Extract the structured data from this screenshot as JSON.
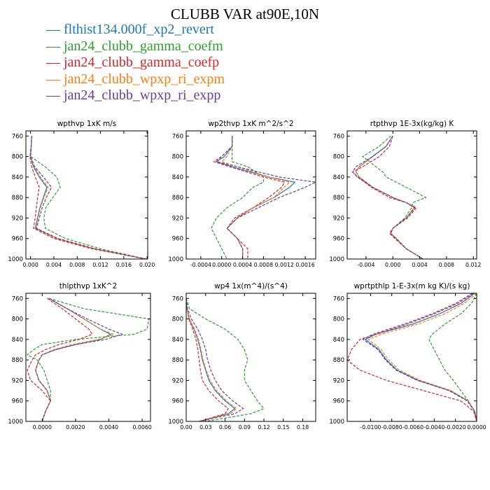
{
  "title": "CLUBB VAR at90E,10N",
  "colors": {
    "flthist134.000f_xp2_revert": "#1f77b4",
    "jan24_clubb_gamma_coefm": "#2ca02c",
    "jan24_clubb_gamma_coefp": "#d62728",
    "jan24_clubb_wpxp_ri_expm": "#ff7f0e",
    "jan24_clubb_wpxp_ri_expp": "#6a3d9a"
  },
  "legend": [
    {
      "label": "— flthist134.000f_xp2_revert",
      "color": "#1f77b4"
    },
    {
      "label": "— jan24_clubb_gamma_coefm",
      "color": "#2ca02c"
    },
    {
      "label": "— jan24_clubb_gamma_coefp",
      "color": "#d62728"
    },
    {
      "label": "— jan24_clubb_wpxp_ri_expm",
      "color": "#ff7f0e"
    },
    {
      "label": "— jan24_clubb_wpxp_ri_expp",
      "color": "#6a3d9a"
    }
  ],
  "chart_data": [
    {
      "type": "line",
      "title": "wpthvp  1xK m/s",
      "xlim": [
        -0.0008,
        0.0201
      ],
      "ylim": [
        1000,
        750
      ],
      "xticks": [
        0.0,
        0.004,
        0.008,
        0.012,
        0.016,
        0.02
      ],
      "xtick_labels": [
        "0.000",
        "0.004",
        "0.008",
        "0.012",
        "0.016",
        "0.020"
      ],
      "yticks": [
        760,
        800,
        840,
        880,
        920,
        960,
        1000
      ],
      "y": [
        760,
        780,
        800,
        820,
        840,
        860,
        880,
        900,
        920,
        940,
        960,
        980,
        1000
      ],
      "series": [
        {
          "name": "flthist134.000f_xp2_revert",
          "values": [
            0.0002,
            0.0001,
            0.0,
            0.0005,
            0.0015,
            0.0028,
            0.0022,
            0.0016,
            0.0012,
            0.0008,
            0.0045,
            0.011,
            0.0198
          ]
        },
        {
          "name": "jan24_clubb_gamma_coefm",
          "values": [
            0.0002,
            0.0001,
            0.0,
            0.0025,
            0.0045,
            0.0051,
            0.0038,
            0.0026,
            0.0023,
            0.0025,
            0.006,
            0.012,
            0.0198
          ]
        },
        {
          "name": "jan24_clubb_gamma_coefp",
          "values": [
            0.0002,
            0.0001,
            -0.0001,
            0.0002,
            0.0008,
            0.0015,
            0.0012,
            0.001,
            0.0008,
            0.0005,
            0.004,
            0.0105,
            0.0198
          ]
        },
        {
          "name": "jan24_clubb_wpxp_ri_expm",
          "values": [
            0.0002,
            0.0001,
            0.0,
            0.0006,
            0.0017,
            0.003,
            0.0023,
            0.0017,
            0.0013,
            0.0009,
            0.0045,
            0.011,
            0.0198
          ]
        },
        {
          "name": "jan24_clubb_wpxp_ri_expp",
          "values": [
            0.0002,
            0.0001,
            0.0,
            0.0007,
            0.0022,
            0.0036,
            0.0027,
            0.002,
            0.0015,
            0.001,
            0.0047,
            0.011,
            0.0198
          ]
        }
      ]
    },
    {
      "type": "line",
      "title": "wp2thvp  1xK m^2/s^2",
      "xlim": [
        -0.00068,
        0.0018
      ],
      "ylim": [
        1000,
        750
      ],
      "xticks": [
        -0.0004,
        0.0,
        0.0004,
        0.0008,
        0.0012,
        0.0016
      ],
      "xtick_labels": [
        "-0.0004",
        "0.0000",
        "0.0004",
        "0.0008",
        "0.0012",
        "0.0016"
      ],
      "yticks": [
        760,
        800,
        840,
        880,
        920,
        960,
        1000
      ],
      "y": [
        760,
        780,
        800,
        810,
        820,
        840,
        850,
        860,
        880,
        900,
        920,
        940,
        960,
        980,
        1000
      ],
      "series": [
        {
          "name": "flthist134.000f_xp2_revert",
          "values": [
            0.0002,
            0.0002,
            5e-05,
            -0.0001,
            0.0002,
            0.0009,
            0.0014,
            0.0013,
            0.001,
            0.0006,
            0.0003,
            0.0001,
            0.0003,
            0.0004,
            0.0004
          ]
        },
        {
          "name": "jan24_clubb_gamma_coefm",
          "values": [
            0.0002,
            0.0002,
            0.0002,
            0.0002,
            0.0005,
            0.0008,
            0.0008,
            0.0006,
            0.0004,
            0.0001,
            -0.0001,
            -0.0002,
            -0.0001,
            0.0,
            0.0001
          ]
        },
        {
          "name": "jan24_clubb_gamma_coefp",
          "values": [
            0.0002,
            0.0002,
            0.0,
            -0.00015,
            0.00015,
            0.0008,
            0.0012,
            0.00115,
            0.0009,
            0.0006,
            0.00025,
            0.0001,
            0.0003,
            0.0005,
            0.0005
          ]
        },
        {
          "name": "jan24_clubb_wpxp_ri_expm",
          "values": [
            0.0002,
            0.0002,
            0.0001,
            0.0,
            0.0003,
            0.0009,
            0.0013,
            0.0012,
            0.001,
            0.0006,
            0.0003,
            0.0001,
            0.0003,
            0.0004,
            0.0004
          ]
        },
        {
          "name": "jan24_clubb_wpxp_ri_expp",
          "values": [
            0.0002,
            0.0002,
            0.0,
            -0.0001,
            0.0003,
            0.0011,
            0.0018,
            0.0016,
            0.0011,
            0.0007,
            0.0003,
            0.0001,
            0.0003,
            0.0004,
            0.0004
          ]
        }
      ]
    },
    {
      "type": "line",
      "title": "rtpthvp  1E-3x(kg/kg) K",
      "xlim": [
        -0.0068,
        0.0125
      ],
      "ylim": [
        1000,
        750
      ],
      "xticks": [
        -0.004,
        0.0,
        0.004,
        0.008,
        0.012
      ],
      "xtick_labels": [
        "-0.004",
        "0.000",
        "0.004",
        "0.008",
        "0.012"
      ],
      "yticks": [
        760,
        800,
        840,
        880,
        920,
        960,
        1000
      ],
      "y": [
        760,
        780,
        800,
        820,
        830,
        840,
        860,
        880,
        890,
        900,
        920,
        940,
        950,
        960,
        980,
        1000
      ],
      "series": [
        {
          "name": "flthist134.000f_xp2_revert",
          "values": [
            0.0,
            -0.001,
            -0.003,
            -0.005,
            -0.0055,
            -0.005,
            -0.003,
            0.0,
            0.002,
            0.0032,
            0.002,
            0.0,
            -0.0003,
            0.0005,
            0.002,
            0.0045
          ]
        },
        {
          "name": "jan24_clubb_gamma_coefm",
          "values": [
            -0.0003,
            -0.002,
            -0.0045,
            -0.0025,
            -0.0015,
            -0.001,
            0.002,
            0.0049,
            0.003,
            0.0028,
            0.0018,
            0.0,
            -0.0003,
            0.0005,
            0.002,
            0.0045
          ]
        },
        {
          "name": "jan24_clubb_gamma_coefp",
          "values": [
            0.0,
            -0.0005,
            -0.002,
            -0.0045,
            -0.006,
            -0.0052,
            -0.0032,
            -0.0005,
            0.002,
            0.0035,
            0.0022,
            0.0,
            -0.0005,
            0.0003,
            0.002,
            0.0045
          ]
        },
        {
          "name": "jan24_clubb_wpxp_ri_expm",
          "values": [
            0.0,
            -0.001,
            -0.003,
            -0.005,
            -0.0055,
            -0.005,
            -0.003,
            0.0,
            0.002,
            0.0032,
            0.002,
            0.0,
            -0.0003,
            0.0005,
            0.002,
            0.0045
          ]
        },
        {
          "name": "jan24_clubb_wpxp_ri_expp",
          "values": [
            0.0,
            -0.001,
            -0.003,
            -0.0055,
            -0.006,
            -0.0053,
            -0.003,
            0.0,
            0.002,
            0.0033,
            0.002,
            0.0,
            -0.0003,
            0.0005,
            0.002,
            0.0045
          ]
        }
      ]
    },
    {
      "type": "line",
      "title": "thlpthvp  1xK^2",
      "xlim": [
        -0.00098,
        0.0065
      ],
      "ylim": [
        1000,
        750
      ],
      "xticks": [
        0.0,
        0.002,
        0.004,
        0.006
      ],
      "xtick_labels": [
        "0.0000",
        "0.0020",
        "0.0040",
        "0.0060"
      ],
      "yticks": [
        760,
        800,
        840,
        880,
        920,
        960,
        1000
      ],
      "y": [
        760,
        780,
        800,
        820,
        830,
        840,
        850,
        860,
        870,
        880,
        900,
        920,
        940,
        960,
        980,
        1000
      ],
      "series": [
        {
          "name": "flthist134.000f_xp2_revert",
          "values": [
            0.0004,
            0.0015,
            0.0025,
            0.0035,
            0.0041,
            0.0035,
            0.002,
            0.0008,
            0.0,
            -0.0002,
            -0.0004,
            -0.0002,
            0.0003,
            0.0005,
            0.0002,
            0.0
          ]
        },
        {
          "name": "jan24_clubb_gamma_coefm",
          "values": [
            0.0004,
            0.0025,
            0.0064,
            0.0063,
            0.0055,
            0.002,
            0.0,
            -0.0005,
            -0.0009,
            -0.0003,
            0.0001,
            0.0003,
            0.0005,
            0.0005,
            0.0002,
            0.0
          ]
        },
        {
          "name": "jan24_clubb_gamma_coefp",
          "values": [
            0.0003,
            0.0012,
            0.002,
            0.0028,
            0.003,
            0.0022,
            0.001,
            0.0002,
            -0.0004,
            -0.0006,
            -0.0009,
            -0.0007,
            0.0,
            0.0005,
            0.0002,
            0.0
          ]
        },
        {
          "name": "jan24_clubb_wpxp_ri_expm",
          "values": [
            0.0004,
            0.0015,
            0.0025,
            0.0035,
            0.0043,
            0.0034,
            0.0018,
            0.0007,
            0.0,
            -0.0002,
            -0.0004,
            -0.0002,
            0.0003,
            0.0005,
            0.0002,
            0.0
          ]
        },
        {
          "name": "jan24_clubb_wpxp_ri_expp",
          "values": [
            0.0004,
            0.0015,
            0.0027,
            0.004,
            0.0048,
            0.0038,
            0.002,
            0.0008,
            0.0,
            -0.0002,
            -0.0004,
            -0.0002,
            0.0003,
            0.0005,
            0.0002,
            0.0
          ]
        }
      ]
    },
    {
      "type": "line",
      "title": "wp4  1x(m^4)/(s^4)",
      "xlim": [
        0.0,
        0.2
      ],
      "ylim": [
        1000,
        750
      ],
      "xticks": [
        0.0,
        0.03,
        0.06,
        0.09,
        0.12,
        0.15,
        0.18
      ],
      "xtick_labels": [
        "0.00",
        "0.03",
        "0.06",
        "0.09",
        "0.12",
        "0.15",
        "0.18"
      ],
      "yticks": [
        760,
        800,
        840,
        880,
        920,
        960,
        1000
      ],
      "y": [
        760,
        780,
        800,
        820,
        840,
        860,
        880,
        900,
        920,
        940,
        960,
        975,
        985,
        1000
      ],
      "series": [
        {
          "name": "flthist134.000f_xp2_revert",
          "values": [
            0.0,
            0.001,
            0.005,
            0.012,
            0.018,
            0.022,
            0.025,
            0.03,
            0.035,
            0.045,
            0.06,
            0.075,
            0.065,
            0.02
          ]
        },
        {
          "name": "jan24_clubb_gamma_coefm",
          "values": [
            0.0,
            0.005,
            0.03,
            0.06,
            0.08,
            0.09,
            0.095,
            0.09,
            0.09,
            0.1,
            0.11,
            0.12,
            0.1,
            0.03
          ]
        },
        {
          "name": "jan24_clubb_gamma_coefp",
          "values": [
            0.0,
            0.001,
            0.004,
            0.01,
            0.015,
            0.018,
            0.02,
            0.022,
            0.025,
            0.035,
            0.05,
            0.065,
            0.06,
            0.02
          ]
        },
        {
          "name": "jan24_clubb_wpxp_ri_expm",
          "values": [
            0.0,
            0.001,
            0.005,
            0.013,
            0.019,
            0.023,
            0.026,
            0.031,
            0.037,
            0.047,
            0.062,
            0.078,
            0.068,
            0.02
          ]
        },
        {
          "name": "jan24_clubb_wpxp_ri_expp",
          "values": [
            0.0,
            0.002,
            0.008,
            0.018,
            0.025,
            0.03,
            0.033,
            0.038,
            0.045,
            0.055,
            0.072,
            0.088,
            0.075,
            0.02
          ]
        }
      ]
    },
    {
      "type": "line",
      "title": "wprtpthlp  1-E-3x(m kg K)/(s kg)",
      "xlim": [
        -0.0122,
        0.0
      ],
      "ylim": [
        1000,
        750
      ],
      "xticks": [
        -0.01,
        -0.008,
        -0.006,
        -0.004,
        -0.002,
        0.0
      ],
      "xtick_labels": [
        "-0.0100",
        "-0.0080",
        "-0.0060",
        "-0.0040",
        "-0.0020",
        "0.0000"
      ],
      "yticks": [
        760,
        800,
        840,
        880,
        920,
        960,
        1000
      ],
      "y": [
        750,
        770,
        790,
        810,
        830,
        840,
        860,
        880,
        900,
        920,
        940,
        960,
        980,
        1000
      ],
      "series": [
        {
          "name": "flthist134.000f_xp2_revert",
          "values": [
            -0.0002,
            -0.0015,
            -0.0035,
            -0.006,
            -0.0095,
            -0.0105,
            -0.0092,
            -0.0085,
            -0.0075,
            -0.0055,
            -0.0025,
            -0.0008,
            -0.0002,
            0.0
          ]
        },
        {
          "name": "jan24_clubb_gamma_coefm",
          "values": [
            0.0,
            -0.0005,
            -0.0015,
            -0.003,
            -0.0042,
            -0.0045,
            -0.004,
            -0.0035,
            -0.003,
            -0.0022,
            -0.0015,
            -0.0008,
            -0.0002,
            0.0
          ]
        },
        {
          "name": "jan24_clubb_gamma_coefp",
          "values": [
            -0.0003,
            -0.0018,
            -0.004,
            -0.0065,
            -0.0095,
            -0.011,
            -0.0118,
            -0.0122,
            -0.011,
            -0.0085,
            -0.005,
            -0.0015,
            -0.0003,
            0.0
          ]
        },
        {
          "name": "jan24_clubb_wpxp_ri_expm",
          "values": [
            0.0,
            -0.0012,
            -0.003,
            -0.0055,
            -0.009,
            -0.0102,
            -0.009,
            -0.0083,
            -0.0073,
            -0.0053,
            -0.0024,
            -0.0008,
            -0.0002,
            0.0
          ]
        },
        {
          "name": "jan24_clubb_wpxp_ri_expp",
          "values": [
            -0.0004,
            -0.002,
            -0.0042,
            -0.0068,
            -0.0098,
            -0.0107,
            -0.0093,
            -0.0086,
            -0.0076,
            -0.0056,
            -0.0026,
            -0.0009,
            -0.0002,
            0.0
          ]
        }
      ]
    }
  ]
}
